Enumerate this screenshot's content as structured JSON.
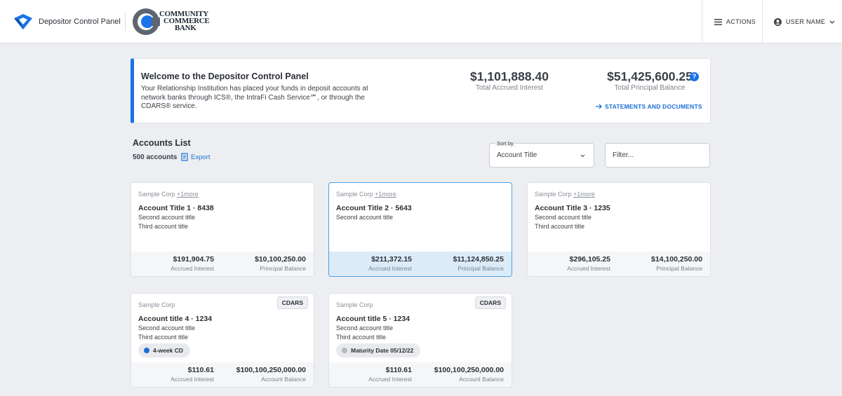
{
  "header": {
    "app_name": "Depositor Control Panel",
    "bank_logo_lines": [
      "COMMUNITY",
      "COMMERCE",
      "BANK"
    ],
    "actions": "ACTIONS",
    "user": "USER NAME"
  },
  "welcome": {
    "title": "Welcome to the Depositor Control Panel",
    "body": "Your Relationship Institution has placed your funds in deposit accounts at network banks through ICS®, the IntraFi Cash Service℠, or through the CDARS® service.",
    "totals": [
      {
        "value": "$1,101,888.40",
        "label": "Total Accrued Interest"
      },
      {
        "value": "$51,425,600.25",
        "label": "Total Principal Balance"
      }
    ],
    "help_icon": "?",
    "link": "STATEMENTS AND DOCUMENTS"
  },
  "accounts": {
    "title": "Accounts List",
    "count": "500 accounts",
    "export": "Export",
    "sort_label": "Sort by",
    "sort_value": "Account Title",
    "filter_placeholder": "Filter...",
    "cards": [
      {
        "owner": "Sample Corp",
        "more": "+1more",
        "title": "Account Title 1 · 8438",
        "lines": [
          "Second account title",
          "Third account title"
        ],
        "amounts": [
          {
            "value": "$191,904.75",
            "label": "Accrued Interest"
          },
          {
            "value": "$10,100,250.00",
            "label": "Principal Balance"
          }
        ]
      },
      {
        "owner": "Sample Corp",
        "more": "+1more",
        "title": "Account Title 2 · 5643",
        "lines": [
          "Second account title"
        ],
        "amounts": [
          {
            "value": "$211,372.15",
            "label": "Accrued Interest"
          },
          {
            "value": "$11,124,850.25",
            "label": "Principal Balance"
          }
        ],
        "selected": true
      },
      {
        "owner": "Sample Corp",
        "more": "+1more",
        "title": "Account Title 3 · 1235",
        "lines": [
          "Second account title",
          "Third account title"
        ],
        "amounts": [
          {
            "value": "$296,105.25",
            "label": "Accrued Interest"
          },
          {
            "value": "$14,100,250.00",
            "label": "Principal Balance"
          }
        ]
      },
      {
        "owner": "Sample Corp",
        "badge": "CDARS",
        "title": "Account title 4 · 1234",
        "lines": [
          "Second account title",
          "Third account title"
        ],
        "tag": {
          "text": "4-week CD",
          "color": "#1a6fd6"
        },
        "amounts": [
          {
            "value": "$110.61",
            "label": "Accrued Interest"
          },
          {
            "value": "$100,100,250,000.00",
            "label": "Account Balance"
          }
        ]
      },
      {
        "owner": "Sample Corp",
        "badge": "CDARS",
        "title": "Account title 5 · 1234",
        "lines": [
          "Second account title",
          "Third account title"
        ],
        "tag": {
          "text": "Maturity Date 05/12/22",
          "color": "#b5b8bd"
        },
        "amounts": [
          {
            "value": "$110.61",
            "label": "Accrued Interest"
          },
          {
            "value": "$100,100,250,000.00",
            "label": "Account Balance"
          }
        ]
      }
    ]
  }
}
